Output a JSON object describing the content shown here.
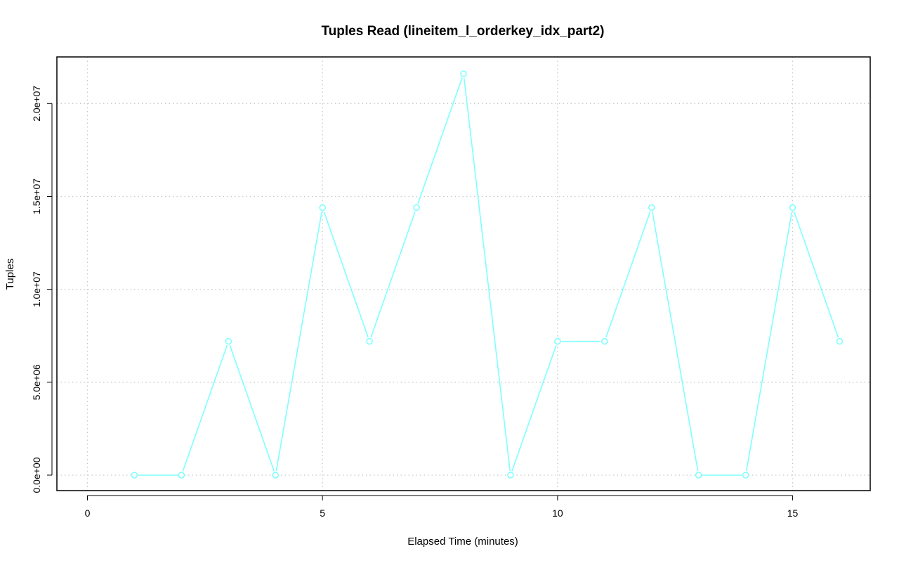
{
  "chart_data": {
    "type": "line",
    "title": "Tuples Read (lineitem_l_orderkey_idx_part2)",
    "xlabel": "Elapsed Time (minutes)",
    "ylabel": "Tuples",
    "xlim": [
      0,
      16
    ],
    "ylim": [
      0,
      21600000
    ],
    "x_ticks": [
      0,
      5,
      10,
      15
    ],
    "x_tick_labels": [
      "0",
      "5",
      "10",
      "15"
    ],
    "y_ticks": [
      0,
      5000000,
      10000000,
      15000000,
      20000000
    ],
    "y_tick_labels": [
      "0.0e+00",
      "5.0e+06",
      "1.0e+07",
      "1.5e+07",
      "2.0e+07"
    ],
    "grid": true,
    "legend": "none",
    "series": [
      {
        "color": "#7fffff",
        "x": [
          1,
          2,
          3,
          4,
          5,
          6,
          7,
          8,
          9,
          10,
          11,
          12,
          13,
          14,
          15,
          16
        ],
        "values": [
          0,
          0,
          7200000,
          0,
          14400000,
          7200000,
          14400000,
          21600000,
          0,
          7200000,
          7200000,
          14400000,
          0,
          0,
          14400000,
          7200000
        ]
      }
    ]
  }
}
